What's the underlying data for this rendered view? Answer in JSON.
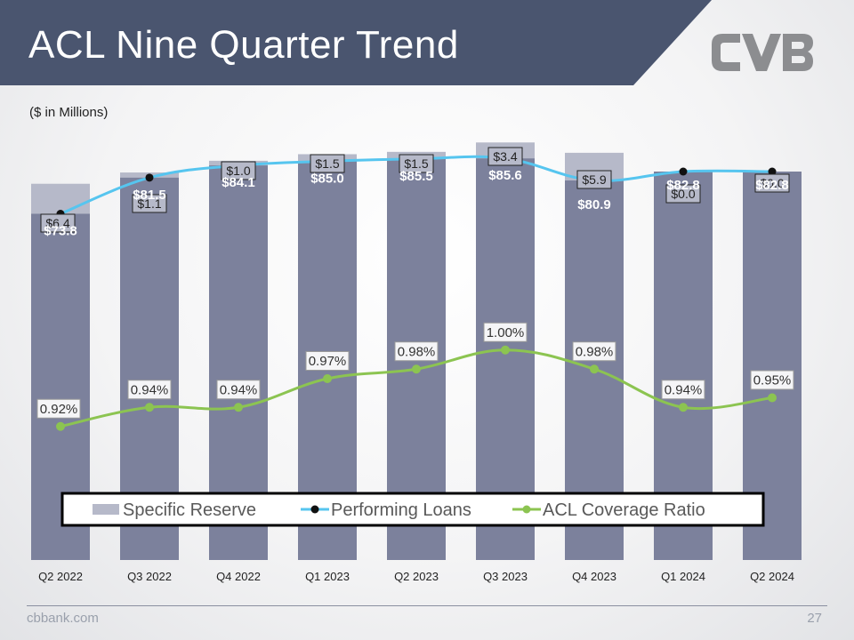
{
  "slide": {
    "title": "ACL Nine Quarter Trend",
    "subtitle": "($ in Millions)",
    "footer_site": "cbbank.com",
    "page_number": "27",
    "colors": {
      "title_band": "#4a556f",
      "bar_loans": "#7c819c",
      "bar_reserve": "#b6b9c9",
      "line_loans": "#56c5ef",
      "line_ratio": "#8cc451",
      "logo": "#8c8d90"
    },
    "logo_icon": "cvb-logo"
  },
  "chart_data": {
    "type": "bar",
    "title": "",
    "categories": [
      "Q2 2022",
      "Q3 2022",
      "Q4 2022",
      "Q1 2023",
      "Q2 2023",
      "Q3 2023",
      "Q4 2023",
      "Q1 2024",
      "Q2 2024"
    ],
    "series": [
      {
        "name": "Specific Reserve",
        "kind": "stacked-bar",
        "values": [
          6.4,
          1.1,
          1.0,
          1.5,
          1.5,
          3.4,
          5.9,
          0.0,
          0.0
        ],
        "labels": [
          "$6.4",
          "$1.1",
          "$1.0",
          "$1.5",
          "$1.5",
          "$3.4",
          "$5.9",
          "$0.0",
          "$0.0"
        ]
      },
      {
        "name": "Performing Loans",
        "kind": "line",
        "values": [
          73.8,
          81.5,
          84.1,
          85.0,
          85.5,
          85.6,
          80.9,
          82.8,
          82.8
        ],
        "labels": [
          "$73.8",
          "$81.5",
          "$84.1",
          "$85.0",
          "$85.5",
          "$85.6",
          "$80.9",
          "$82.8",
          "$82.8"
        ]
      },
      {
        "name": "ACL Coverage Ratio",
        "kind": "line",
        "values": [
          0.92,
          0.94,
          0.94,
          0.97,
          0.98,
          1.0,
          0.98,
          0.94,
          0.95
        ],
        "labels": [
          "0.92%",
          "0.94%",
          "0.94%",
          "0.97%",
          "0.98%",
          "1.00%",
          "0.98%",
          "0.94%",
          "0.95%"
        ]
      }
    ],
    "legend": {
      "placement": "bottom",
      "items": [
        "Specific Reserve",
        "Performing Loans",
        "ACL Coverage Ratio"
      ]
    },
    "grid": false
  }
}
